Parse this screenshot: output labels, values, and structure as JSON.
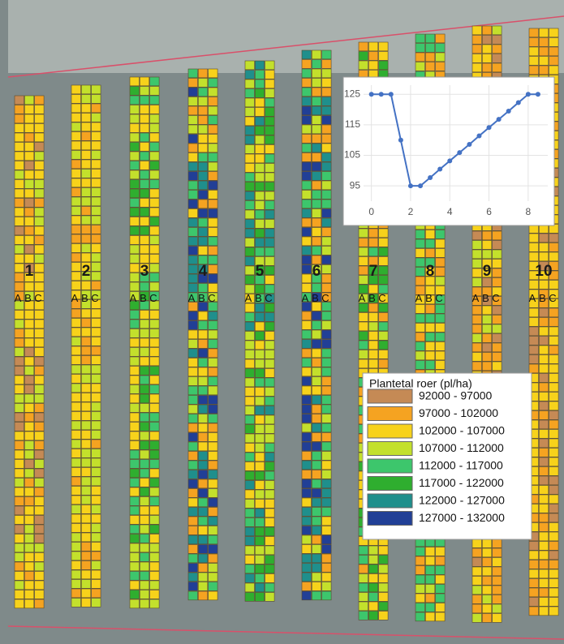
{
  "strips": {
    "labels": [
      "1",
      "2",
      "3",
      "4",
      "5",
      "6",
      "7",
      "8",
      "9",
      "10"
    ],
    "columns": [
      "A",
      "B",
      "C"
    ]
  },
  "legend": {
    "title": "Plantetal roer (pl/ha)",
    "items": [
      {
        "label": "92000 - 97000",
        "color": "#c58a55"
      },
      {
        "label": "97000 - 102000",
        "color": "#f5a321"
      },
      {
        "label": "102000 - 107000",
        "color": "#f7d21b"
      },
      {
        "label": "107000 - 112000",
        "color": "#c3e02c"
      },
      {
        "label": "112000 - 117000",
        "color": "#3dc66c"
      },
      {
        "label": "117000 - 122000",
        "color": "#2fae2f"
      },
      {
        "label": "122000 - 127000",
        "color": "#1f8f8c"
      },
      {
        "label": "127000 - 132000",
        "color": "#213f96"
      }
    ]
  },
  "chart_data": {
    "type": "line",
    "color": "#4472c4",
    "x": [
      0,
      0.5,
      1,
      1.5,
      2,
      2.5,
      3,
      3.5,
      4,
      4.5,
      5,
      5.5,
      6,
      6.5,
      7,
      7.5,
      8,
      8.5
    ],
    "values": [
      125,
      125,
      125,
      110,
      95,
      95,
      97.7,
      100.5,
      103.2,
      105.9,
      108.6,
      111.4,
      114.1,
      116.8,
      119.5,
      122.3,
      125,
      125
    ],
    "xlim": [
      -0.4,
      9
    ],
    "ylim": [
      90,
      128
    ],
    "xticks": [
      0,
      2,
      4,
      6,
      8
    ],
    "yticks": [
      95,
      105,
      115,
      125
    ],
    "grid": true
  }
}
